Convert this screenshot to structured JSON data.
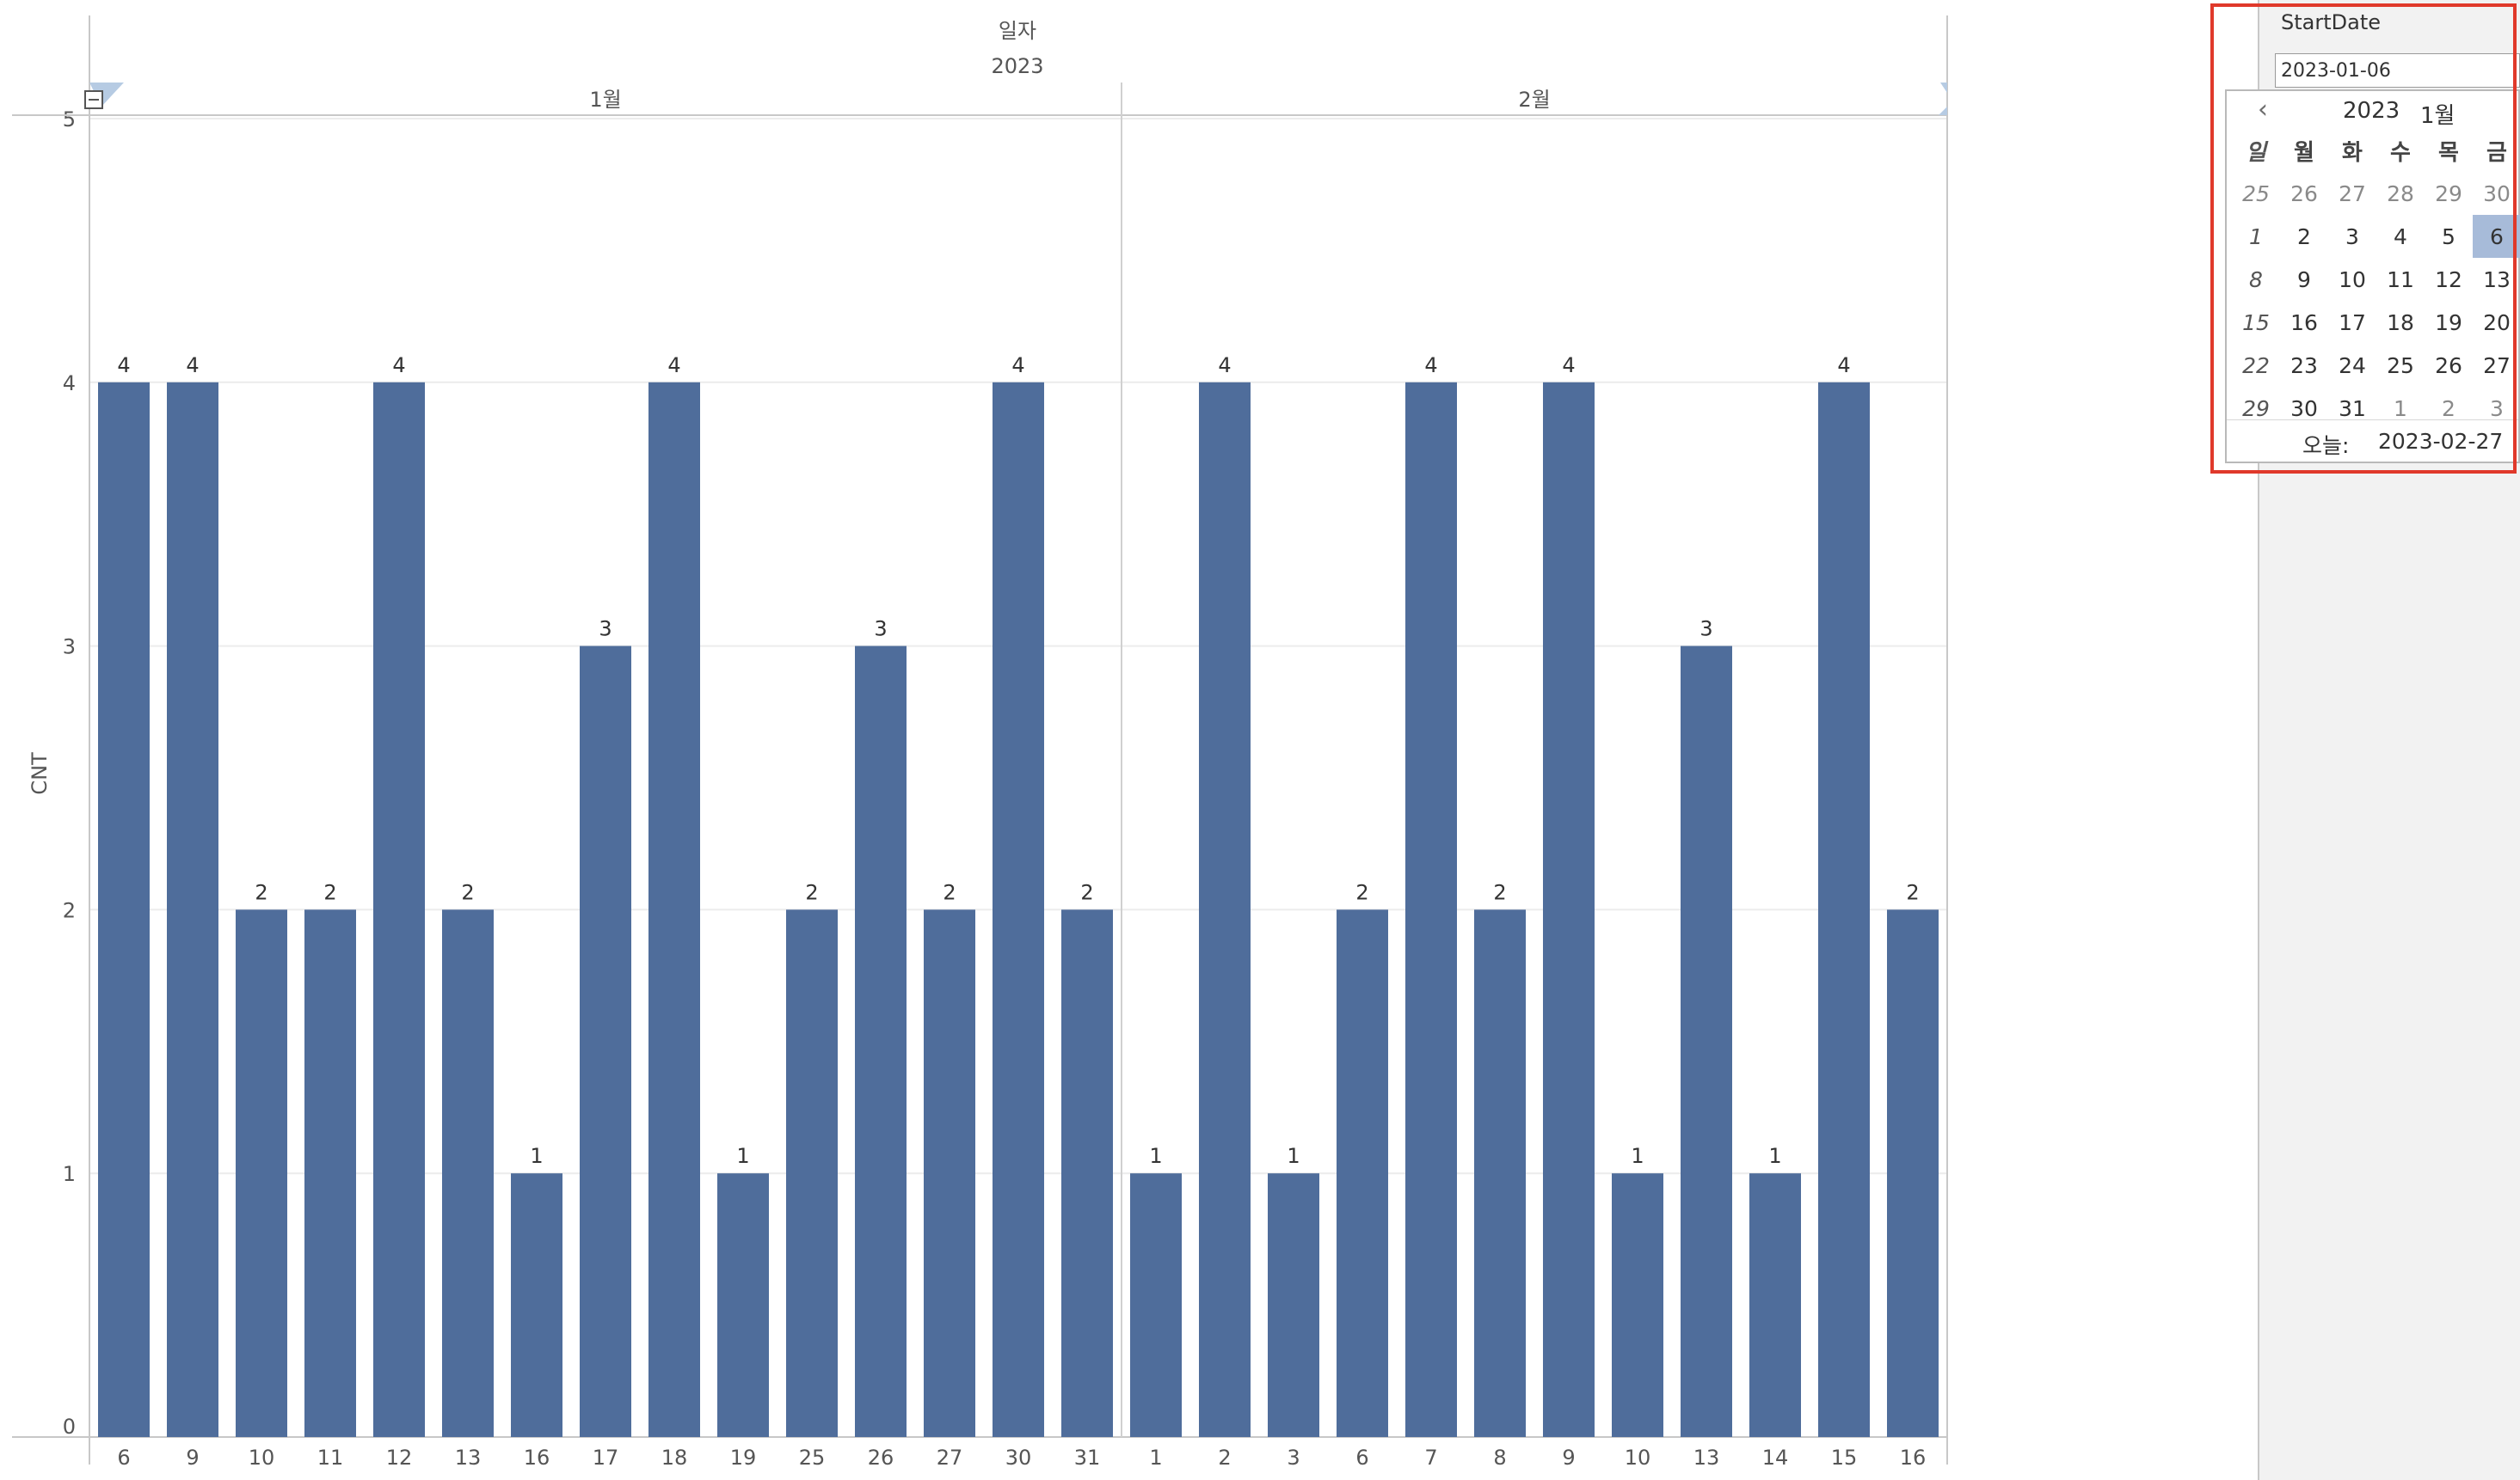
{
  "chart_data": {
    "type": "bar",
    "header": {
      "title": "일자",
      "year": "2023"
    },
    "ylabel": "CNT",
    "ylim": [
      0,
      5
    ],
    "yticks": [
      0,
      1,
      2,
      3,
      4,
      5
    ],
    "grid": true,
    "bar_color": "#4f6d9b",
    "panes": [
      {
        "label": "1월",
        "categories": [
          "6",
          "9",
          "10",
          "11",
          "12",
          "13",
          "16",
          "17",
          "18",
          "19",
          "25",
          "26",
          "27",
          "30",
          "31"
        ],
        "values": [
          4,
          4,
          2,
          2,
          4,
          2,
          1,
          3,
          4,
          1,
          2,
          3,
          2,
          4,
          2
        ]
      },
      {
        "label": "2월",
        "categories": [
          "1",
          "2",
          "3",
          "6",
          "7",
          "8",
          "9",
          "10",
          "13",
          "14",
          "15",
          "16"
        ],
        "values": [
          1,
          4,
          1,
          2,
          4,
          2,
          4,
          1,
          3,
          1,
          4,
          2
        ]
      }
    ]
  },
  "panel": {
    "param_label": "StartDate",
    "input_value": "2023-01-06"
  },
  "calendar": {
    "prev_icon": "chevron-left-icon",
    "year": "2023",
    "month": "1월",
    "weekdays": [
      "일",
      "월",
      "화",
      "수",
      "목",
      "금"
    ],
    "weeks": [
      [
        "25",
        "26",
        "27",
        "28",
        "29",
        "30"
      ],
      [
        "1",
        "2",
        "3",
        "4",
        "5",
        "6"
      ],
      [
        "8",
        "9",
        "10",
        "11",
        "12",
        "13"
      ],
      [
        "15",
        "16",
        "17",
        "18",
        "19",
        "20"
      ],
      [
        "22",
        "23",
        "24",
        "25",
        "26",
        "27"
      ],
      [
        "29",
        "30",
        "31",
        "1",
        "2",
        "3"
      ]
    ],
    "other_month_rows": {
      "0": [
        0,
        1,
        2,
        3,
        4,
        5
      ],
      "5": [
        3,
        4,
        5
      ]
    },
    "selected": {
      "row": 1,
      "col": 5
    },
    "today_label": "오늘:",
    "today_value": "2023-02-27",
    "selected_color": "#a7bbd9"
  },
  "highlight_color": "#e0392b"
}
